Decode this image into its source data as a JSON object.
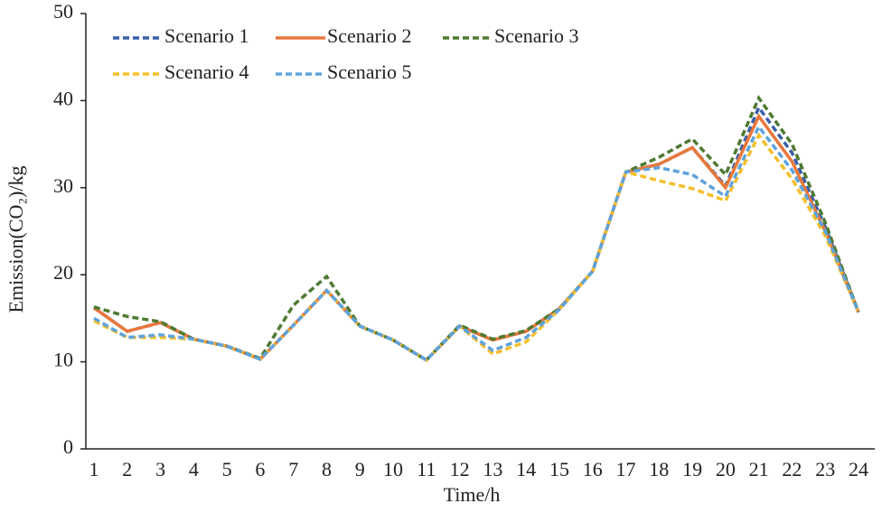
{
  "chart_data": {
    "type": "line",
    "xlabel": "Time/h",
    "ylabel": "Emission(CO₂)/kg",
    "categories": [
      "1",
      "2",
      "3",
      "4",
      "5",
      "6",
      "7",
      "8",
      "9",
      "10",
      "11",
      "12",
      "13",
      "14",
      "15",
      "16",
      "17",
      "18",
      "19",
      "20",
      "21",
      "22",
      "23",
      "24"
    ],
    "ylim": [
      0,
      50
    ],
    "yticks": [
      0,
      10,
      20,
      30,
      40,
      50
    ],
    "legend": "top-left",
    "series": [
      {
        "name": "Scenario 1",
        "color": "#3a5fa8",
        "dashed": true,
        "values": [
          16.2,
          13.5,
          14.5,
          12.6,
          11.8,
          10.3,
          14.2,
          18.2,
          14.1,
          12.5,
          10.2,
          14.1,
          12.5,
          13.5,
          16.1,
          20.4,
          31.8,
          32.7,
          34.6,
          30.2,
          39.2,
          34.0,
          25.5,
          15.7
        ]
      },
      {
        "name": "Scenario 2",
        "color": "#e8783a",
        "dashed": false,
        "values": [
          16.2,
          13.5,
          14.5,
          12.6,
          11.8,
          10.3,
          14.2,
          18.2,
          14.1,
          12.5,
          10.2,
          14.1,
          12.5,
          13.5,
          16.1,
          20.4,
          31.8,
          32.7,
          34.6,
          30.0,
          38.2,
          33.0,
          25.0,
          15.7
        ]
      },
      {
        "name": "Scenario 3",
        "color": "#4e7a32",
        "dashed": true,
        "values": [
          16.3,
          15.2,
          14.6,
          12.6,
          11.8,
          10.4,
          16.5,
          19.8,
          14.1,
          12.5,
          10.2,
          14.2,
          12.6,
          13.6,
          16.1,
          20.4,
          31.8,
          33.5,
          35.6,
          31.5,
          40.3,
          35.0,
          26.0,
          15.7
        ]
      },
      {
        "name": "Scenario 4",
        "color": "#f5bf2a",
        "dashed": true,
        "values": [
          14.7,
          12.8,
          12.8,
          12.6,
          11.8,
          10.3,
          14.2,
          18.2,
          14.1,
          12.5,
          10.2,
          14.1,
          10.9,
          12.3,
          16.0,
          20.4,
          31.8,
          30.8,
          29.9,
          28.5,
          36.0,
          31.0,
          24.5,
          15.7
        ]
      },
      {
        "name": "Scenario 5",
        "color": "#5ea3dc",
        "dashed": true,
        "values": [
          15.0,
          12.8,
          13.1,
          12.6,
          11.8,
          10.3,
          14.2,
          18.2,
          14.1,
          12.5,
          10.2,
          14.1,
          11.3,
          12.8,
          16.0,
          20.4,
          31.8,
          32.3,
          31.5,
          29.0,
          37.0,
          32.0,
          25.0,
          15.7
        ]
      }
    ]
  }
}
